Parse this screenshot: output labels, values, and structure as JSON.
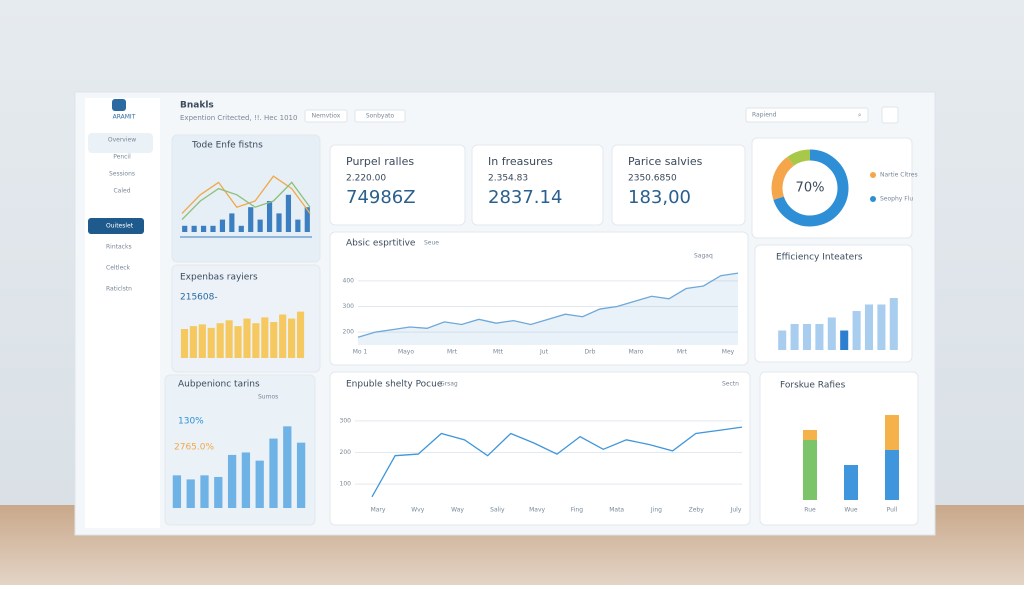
{
  "sidebar": {
    "logo": "ARAMIT",
    "items": [
      "Overview",
      "Pencil",
      "Sessions",
      "Caled",
      "Ouiteslet",
      "Rintacks",
      "Celtleck",
      "Raticlstn"
    ]
  },
  "header": {
    "title": "Bnakls",
    "subtitle": "Expention Critected, !!. Hec 1010",
    "tabs": [
      "Nemvtiox",
      "Sonbyato"
    ],
    "search": "Rapiend"
  },
  "kpis": [
    {
      "label": "Purpel ralles",
      "sub": "2.220.00",
      "value": "74986Z"
    },
    {
      "label": "In freasures",
      "sub": "2.354.83",
      "value": "2837.14"
    },
    {
      "label": "Parice salvies",
      "sub": "2350.6850",
      "value": "183,00"
    }
  ],
  "donut": {
    "center": "70%",
    "values": [
      70,
      20,
      10
    ],
    "colors": [
      "#2e8fd6",
      "#f5a54a",
      "#a8c84a"
    ],
    "legend": [
      {
        "name": "Nartie Cltres",
        "color": "#f5a54a"
      },
      {
        "name": "Seophy Flu",
        "color": "#2e8fd6"
      }
    ]
  },
  "card1": {
    "title": "Tode Enfe fistns",
    "ylim": [
      0,
      10
    ],
    "lines": [
      {
        "color": "#f0a94a",
        "values": [
          3,
          6,
          8,
          4,
          5,
          9,
          7,
          3
        ]
      },
      {
        "color": "#8cc07a",
        "values": [
          2,
          5,
          7,
          6,
          4,
          5,
          8,
          4
        ]
      }
    ],
    "bars": {
      "color": "#3c7fc0",
      "values": [
        1,
        1,
        1,
        1,
        2,
        3,
        1,
        4,
        2,
        5,
        3,
        6,
        2,
        4
      ]
    }
  },
  "card2": {
    "title": "Expenbas rayiers",
    "sub": "215608-",
    "ylim": [
      0,
      10
    ],
    "color": "#f5c960",
    "values": [
      5,
      5.5,
      5.8,
      5.2,
      6,
      6.5,
      5.5,
      6.8,
      6,
      7,
      6.2,
      7.5,
      6.8,
      8
    ]
  },
  "card3": {
    "title": "Aubpenionc tarins",
    "kpi1": "130%",
    "kpi2": "2765.0%",
    "legend": "Sumos",
    "ylim": [
      0,
      12
    ],
    "color": "#6fb3e6",
    "values": [
      4,
      3.5,
      4,
      3.8,
      6.5,
      6.8,
      5.8,
      8.5,
      10,
      8
    ]
  },
  "mid": {
    "title": "Absic esprtitive",
    "badge": "Seue",
    "legend": "Sagaq",
    "ylim": [
      150,
      450
    ],
    "yticks": [
      200,
      300,
      400
    ],
    "color": "#6fa8d8",
    "categories": [
      "Mo 1",
      "Mayo",
      "Mrt",
      "Mtt",
      "Jut",
      "Drb",
      "Maro",
      "Mrt",
      "Mey"
    ],
    "values": [
      180,
      200,
      210,
      220,
      215,
      240,
      230,
      250,
      235,
      245,
      230,
      250,
      270,
      260,
      290,
      300,
      320,
      340,
      330,
      370,
      380,
      420,
      430
    ]
  },
  "eff": {
    "title": "Efficiency Inteaters",
    "ylim": [
      0,
      10
    ],
    "values": [
      3,
      4,
      4,
      4,
      5,
      3,
      6,
      7,
      7,
      8
    ],
    "colors": [
      "#a8cdee",
      "#a8cdee",
      "#a8cdee",
      "#a8cdee",
      "#a8cdee",
      "#2e7fd0",
      "#a8cdee",
      "#a8cdee",
      "#a8cdee",
      "#a8cdee"
    ]
  },
  "bottom": {
    "title": "Enpuble shelty Pocue",
    "badge": "Grsag",
    "action": "Sectn",
    "ylim": [
      50,
      350
    ],
    "yticks": [
      100,
      200,
      300
    ],
    "color": "#3f96dc",
    "categories": [
      "Mary",
      "Wvy",
      "Way",
      "Saliy",
      "Mavy",
      "Fing",
      "Mata",
      "Jing",
      "Zeby",
      "July"
    ],
    "values": [
      60,
      190,
      195,
      260,
      240,
      190,
      260,
      230,
      195,
      250,
      210,
      240,
      225,
      205,
      260,
      270,
      280
    ]
  },
  "forsk": {
    "title": "Forskue Rafies",
    "ylim": [
      0,
      100
    ],
    "categories": [
      "Rue",
      "Wue",
      "Pull"
    ],
    "series": [
      {
        "color": "#7cc46a",
        "values": [
          60,
          0,
          0
        ]
      },
      {
        "color": "#3f96dc",
        "values": [
          0,
          35,
          50
        ]
      },
      {
        "color": "#f5b24a",
        "values": [
          10,
          0,
          35
        ]
      }
    ]
  }
}
